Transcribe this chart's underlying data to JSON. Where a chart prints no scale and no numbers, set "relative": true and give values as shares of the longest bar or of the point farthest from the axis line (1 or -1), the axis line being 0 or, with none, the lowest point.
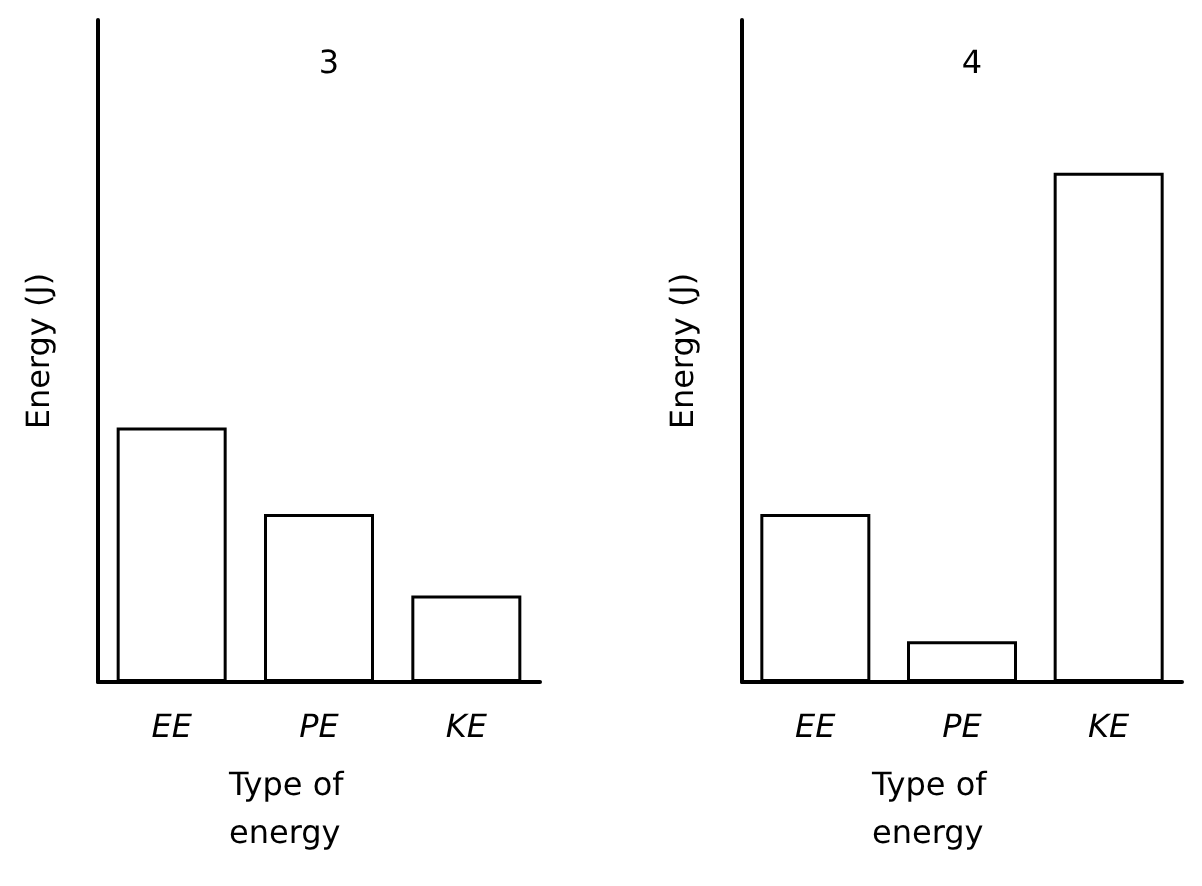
{
  "chart_data": [
    {
      "type": "bar",
      "title": "3",
      "xlabel": "Type of energy",
      "ylabel": "Energy (J)",
      "categories": [
        "EE",
        "PE",
        "KE"
      ],
      "values": [
        1,
        0.66,
        0.34
      ],
      "color": "#ffffff",
      "relative": true
    },
    {
      "type": "bar",
      "title": "4",
      "xlabel": "Type of energy",
      "ylabel": "Energy (J)",
      "categories": [
        "EE",
        "PE",
        "KE"
      ],
      "values": [
        0.33,
        0.08,
        1
      ],
      "color": "#ffffff",
      "relative": true
    }
  ]
}
